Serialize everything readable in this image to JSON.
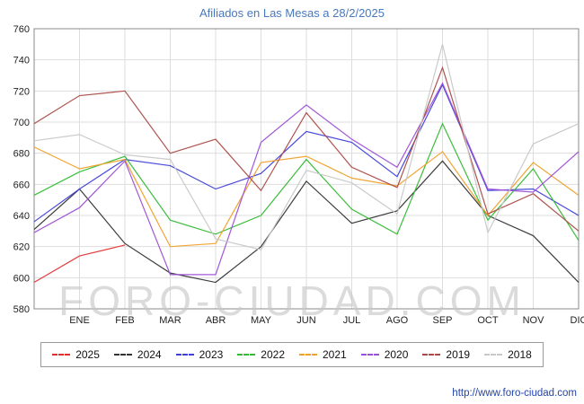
{
  "header": {
    "title": "Afiliados en Las Mesas a 28/2/2025"
  },
  "watermark": "FORO-CIUDAD.COM",
  "footer": {
    "url": "http://www.foro-ciudad.com"
  },
  "chart_data": {
    "type": "line",
    "title": "Afiliados en Las Mesas a 28/2/2025",
    "x_labels": [
      "",
      "ENE",
      "FEB",
      "MAR",
      "ABR",
      "MAY",
      "JUN",
      "JUL",
      "AGO",
      "SEP",
      "OCT",
      "NOV",
      "DIC"
    ],
    "ylim": [
      580,
      760
    ],
    "yticks": [
      760,
      740,
      720,
      700,
      680,
      660,
      640,
      620,
      600,
      580
    ],
    "grid": true,
    "legend_position": "bottom",
    "colors": {
      "grid": "#dddddd",
      "frame": "#888888",
      "axis_text": "#222222",
      "title": "#4878be"
    },
    "series": [
      {
        "name": "2025",
        "color": "#e03030",
        "values": [
          597,
          614,
          621
        ]
      },
      {
        "name": "2024",
        "color": "#333333",
        "values": [
          631,
          657,
          622,
          603,
          597,
          620,
          662,
          635,
          643,
          675,
          640,
          627,
          597
        ]
      },
      {
        "name": "2023",
        "color": "#4040d9",
        "values": [
          636,
          657,
          676,
          672,
          657,
          667,
          694,
          687,
          665,
          724,
          656,
          657,
          640
        ]
      },
      {
        "name": "2022",
        "color": "#33b933",
        "values": [
          653,
          668,
          678,
          637,
          628,
          640,
          676,
          644,
          628,
          699,
          637,
          670,
          624
        ]
      },
      {
        "name": "2021",
        "color": "#f0a028",
        "values": [
          684,
          670,
          676,
          620,
          622,
          674,
          678,
          664,
          659,
          681,
          640,
          674,
          653
        ]
      },
      {
        "name": "2020",
        "color": "#9c4fd7",
        "values": [
          629,
          645,
          675,
          602,
          602,
          687,
          711,
          689,
          671,
          725,
          657,
          655,
          681
        ]
      },
      {
        "name": "2019",
        "color": "#aa4a44",
        "values": [
          699,
          717,
          720,
          680,
          689,
          656,
          706,
          671,
          658,
          735,
          641,
          654,
          630
        ]
      },
      {
        "name": "2018",
        "color": "#c8c8c8",
        "values": [
          688,
          692,
          679,
          676,
          625,
          618,
          669,
          661,
          641,
          750,
          629,
          686,
          699
        ]
      }
    ]
  }
}
